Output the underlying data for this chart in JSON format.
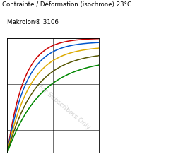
{
  "title_line1": "Contrainte / Déformation (isochrone) 23°C",
  "title_line2": "Makrolon® 3106",
  "background_color": "#ffffff",
  "watermark": "For Subscribers Only",
  "line_colors": [
    "#cc0000",
    "#0070c0",
    "#00aa00",
    "#ccaa00",
    "#880088"
  ],
  "xlim": [
    0,
    1
  ],
  "ylim": [
    0,
    1
  ],
  "grid_color": "#000000",
  "watermark_color": "#aaaaaa",
  "watermark_alpha": 0.55,
  "watermark_fontsize": 6.5,
  "watermark_rotation": -40
}
